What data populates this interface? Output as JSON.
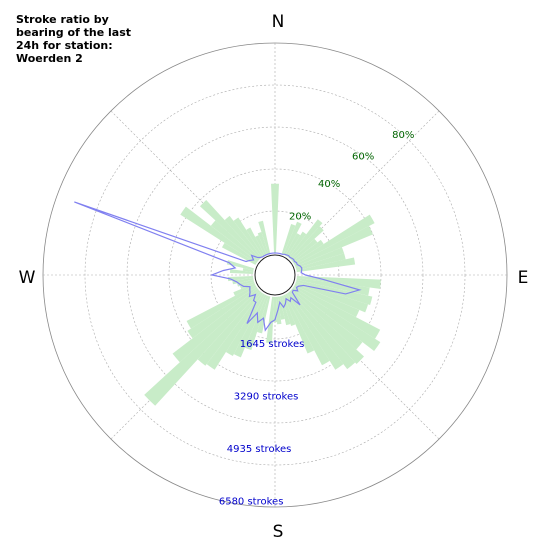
{
  "chart_data": {
    "type": "polar-bar-line",
    "title": "Stroke ratio by bearing of the last 24h for station: Woerden 2",
    "compass": [
      "N",
      "E",
      "S",
      "W"
    ],
    "ratio_rings": [
      20,
      40,
      60,
      80
    ],
    "ratio_labels": [
      "20%",
      "40%",
      "60%",
      "80%"
    ],
    "count_rings": [
      1645,
      3290,
      4935,
      6580
    ],
    "count_labels": [
      "1645 strokes",
      "3290 strokes",
      "4935 strokes",
      "6580 strokes"
    ],
    "bin_width_deg": 5,
    "colors": {
      "ratio_fill": "#c8ecc8",
      "count_line": "#8080f0",
      "grid": "#aaaaaa",
      "ratio_text": "#006400",
      "count_text": "#0000cc"
    },
    "series": [
      {
        "name": "ratio",
        "bearing": [
          0,
          5,
          10,
          15,
          20,
          25,
          30,
          35,
          40,
          45,
          50,
          55,
          60,
          65,
          70,
          75,
          80,
          85,
          90,
          95,
          100,
          105,
          110,
          115,
          120,
          125,
          130,
          135,
          140,
          145,
          150,
          155,
          160,
          165,
          170,
          175,
          180,
          185,
          190,
          195,
          200,
          205,
          210,
          215,
          220,
          225,
          230,
          235,
          240,
          245,
          250,
          255,
          260,
          265,
          270,
          275,
          280,
          285,
          290,
          295,
          300,
          305,
          310,
          315,
          320,
          325,
          330,
          335,
          340,
          345,
          350,
          355
        ],
        "values": [
          33,
          0,
          0,
          0,
          15,
          17,
          12,
          14,
          23,
          21,
          15,
          17,
          43,
          40,
          24,
          24,
          28,
          0,
          0,
          40,
          35,
          37,
          36,
          33,
          46,
          49,
          42,
          47,
          46,
          43,
          38,
          30,
          15,
          14,
          11,
          13,
          12,
          22,
          0,
          18,
          27,
          32,
          33,
          43,
          44,
          74,
          51,
          39,
          37,
          11,
          7,
          8,
          10,
          12,
          0,
          11,
          5,
          13,
          0,
          0,
          18,
          43,
          28,
          38,
          25,
          22,
          15,
          10,
          11,
          16,
          0,
          0
        ]
      },
      {
        "name": "strokes",
        "bearing": [
          0,
          5,
          10,
          15,
          20,
          25,
          30,
          35,
          40,
          45,
          50,
          55,
          60,
          65,
          70,
          75,
          80,
          85,
          90,
          95,
          100,
          105,
          110,
          115,
          120,
          125,
          130,
          135,
          140,
          145,
          150,
          155,
          160,
          165,
          170,
          175,
          180,
          185,
          190,
          195,
          200,
          205,
          210,
          215,
          220,
          225,
          230,
          235,
          240,
          245,
          250,
          255,
          260,
          265,
          270,
          275,
          280,
          285,
          290,
          295,
          300,
          305,
          310,
          315,
          320,
          325,
          330,
          335,
          340,
          345,
          350,
          355
        ],
        "values": [
          0,
          0,
          0,
          0,
          0,
          30,
          40,
          60,
          40,
          60,
          80,
          60,
          100,
          90,
          160,
          200,
          180,
          150,
          300,
          900,
          2250,
          1800,
          300,
          150,
          100,
          200,
          60,
          90,
          600,
          200,
          300,
          150,
          300,
          400,
          200,
          450,
          800,
          900,
          1200,
          800,
          1000,
          700,
          1200,
          400,
          400,
          200,
          400,
          300,
          250,
          200,
          400,
          500,
          600,
          800,
          1450,
          1050,
          650,
          900,
          6750,
          350,
          250,
          150,
          300,
          100,
          30,
          0,
          0,
          0,
          0,
          0,
          0,
          0
        ]
      }
    ]
  }
}
